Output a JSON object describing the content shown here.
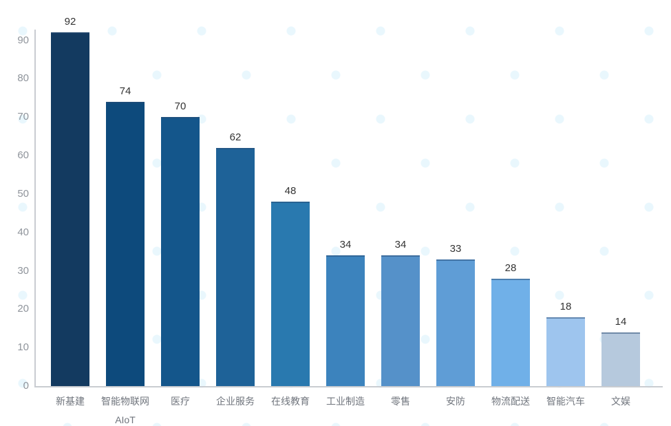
{
  "chart_data": {
    "type": "bar",
    "categories": [
      "新基建",
      "智能物联网\nAIoT",
      "医疗",
      "企业服务",
      "在线教育",
      "工业制造",
      "零售",
      "安防",
      "物流配送",
      "智能汽车",
      "文娱"
    ],
    "values": [
      92,
      74,
      70,
      62,
      48,
      34,
      34,
      33,
      28,
      18,
      14
    ],
    "value_labels": [
      "92",
      "74",
      "70",
      "62",
      "48",
      "34",
      "34",
      "33",
      "28",
      "18",
      "14"
    ],
    "bar_colors": [
      "#133a60",
      "#0d4a7c",
      "#14568b",
      "#1e6298",
      "#2979af",
      "#3c83bd",
      "#5591c9",
      "#5f9dd6",
      "#70b0e8",
      "#9ec5ee",
      "#b6c9dd"
    ],
    "title": "",
    "xlabel": "",
    "ylabel": "",
    "ylim": [
      0,
      90
    ],
    "y_ticks": [
      "0",
      "10",
      "20",
      "30",
      "40",
      "50",
      "60",
      "70",
      "80",
      "90"
    ],
    "grid": false,
    "legend": false
  },
  "colors": {
    "axis_line": "#c9ccd1",
    "tick_label": "#8f949b",
    "value_label": "#333333",
    "category_label": "#70757d",
    "bar_cap": "rgba(40,75,115,0.5)",
    "background": "#ffffff",
    "watermark_dot": "#e9f7fd"
  }
}
